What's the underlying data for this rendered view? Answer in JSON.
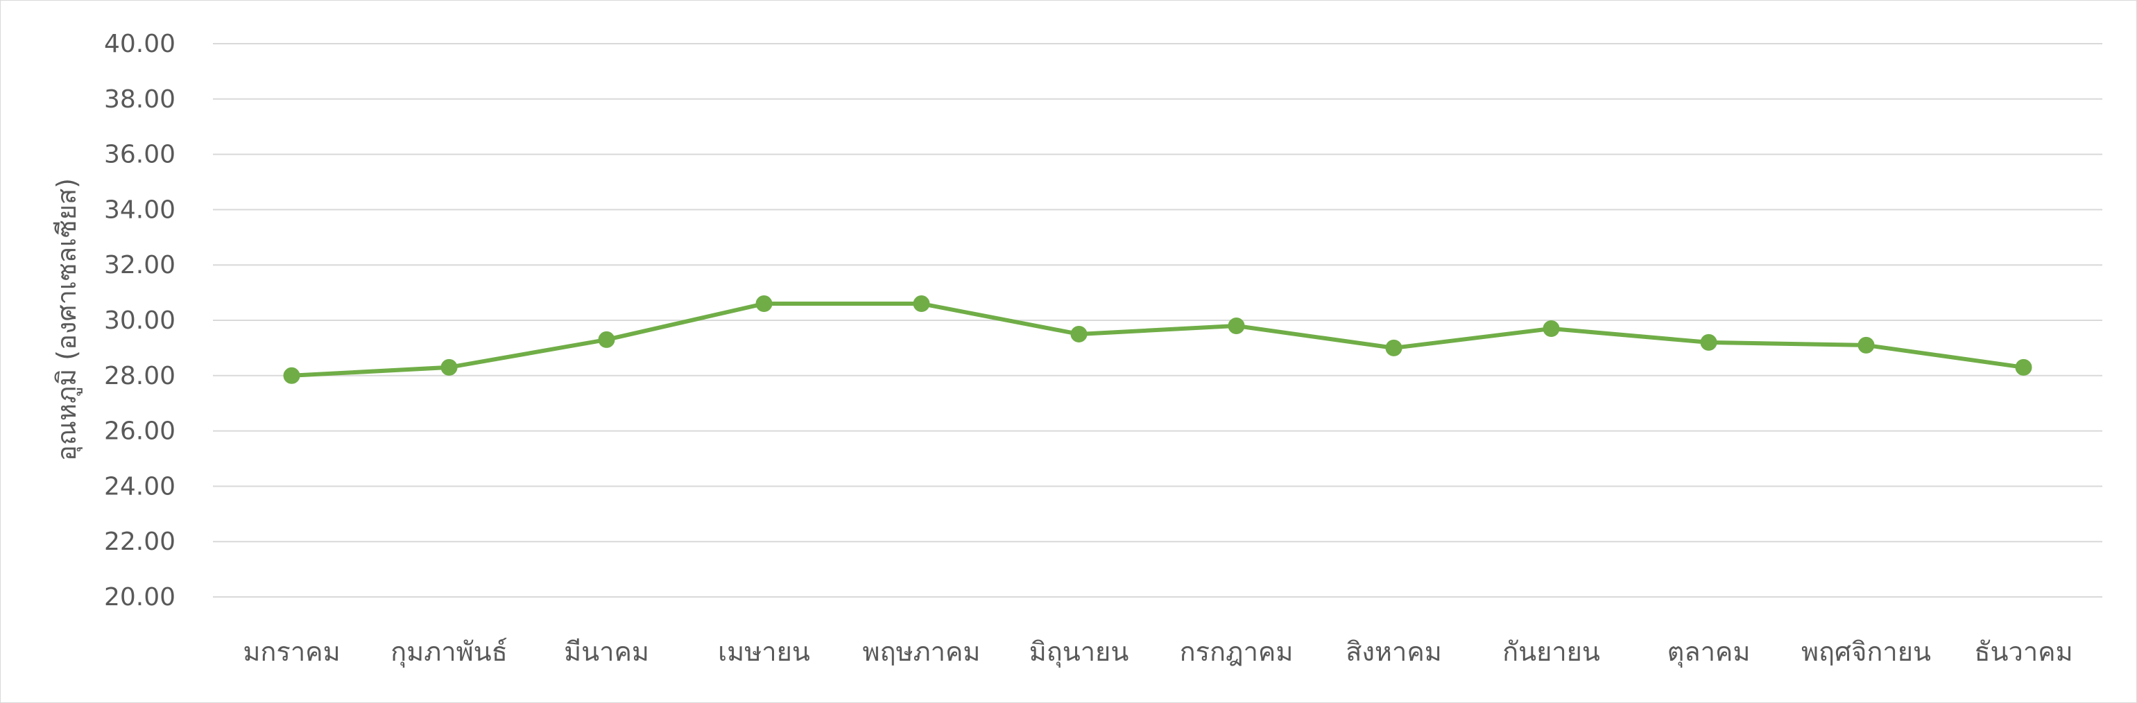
{
  "chart_data": {
    "type": "line",
    "title": "",
    "xlabel": "",
    "ylabel": "อุณหภูมิ (องศาเซลเซียส)",
    "ylim": [
      20,
      40
    ],
    "y_ticks": [
      "20.00",
      "22.00",
      "24.00",
      "26.00",
      "28.00",
      "30.00",
      "32.00",
      "34.00",
      "36.00",
      "38.00",
      "40.00"
    ],
    "categories": [
      "มกราคม",
      "กุมภาพันธ์",
      "มีนาคม",
      "เมษายน",
      "พฤษภาคม",
      "มิถุนายน",
      "กรกฎาคม",
      "สิงหาคม",
      "กันยายน",
      "ตุลาคม",
      "พฤศจิกายน",
      "ธันวาคม"
    ],
    "series": [
      {
        "values": [
          28.0,
          28.3,
          29.3,
          30.6,
          30.6,
          29.5,
          29.8,
          29.0,
          29.7,
          29.2,
          29.1,
          28.3
        ],
        "color": "#70ad47"
      }
    ],
    "grid": true,
    "gridline_color": "#d9d9d9",
    "legend": "none"
  }
}
